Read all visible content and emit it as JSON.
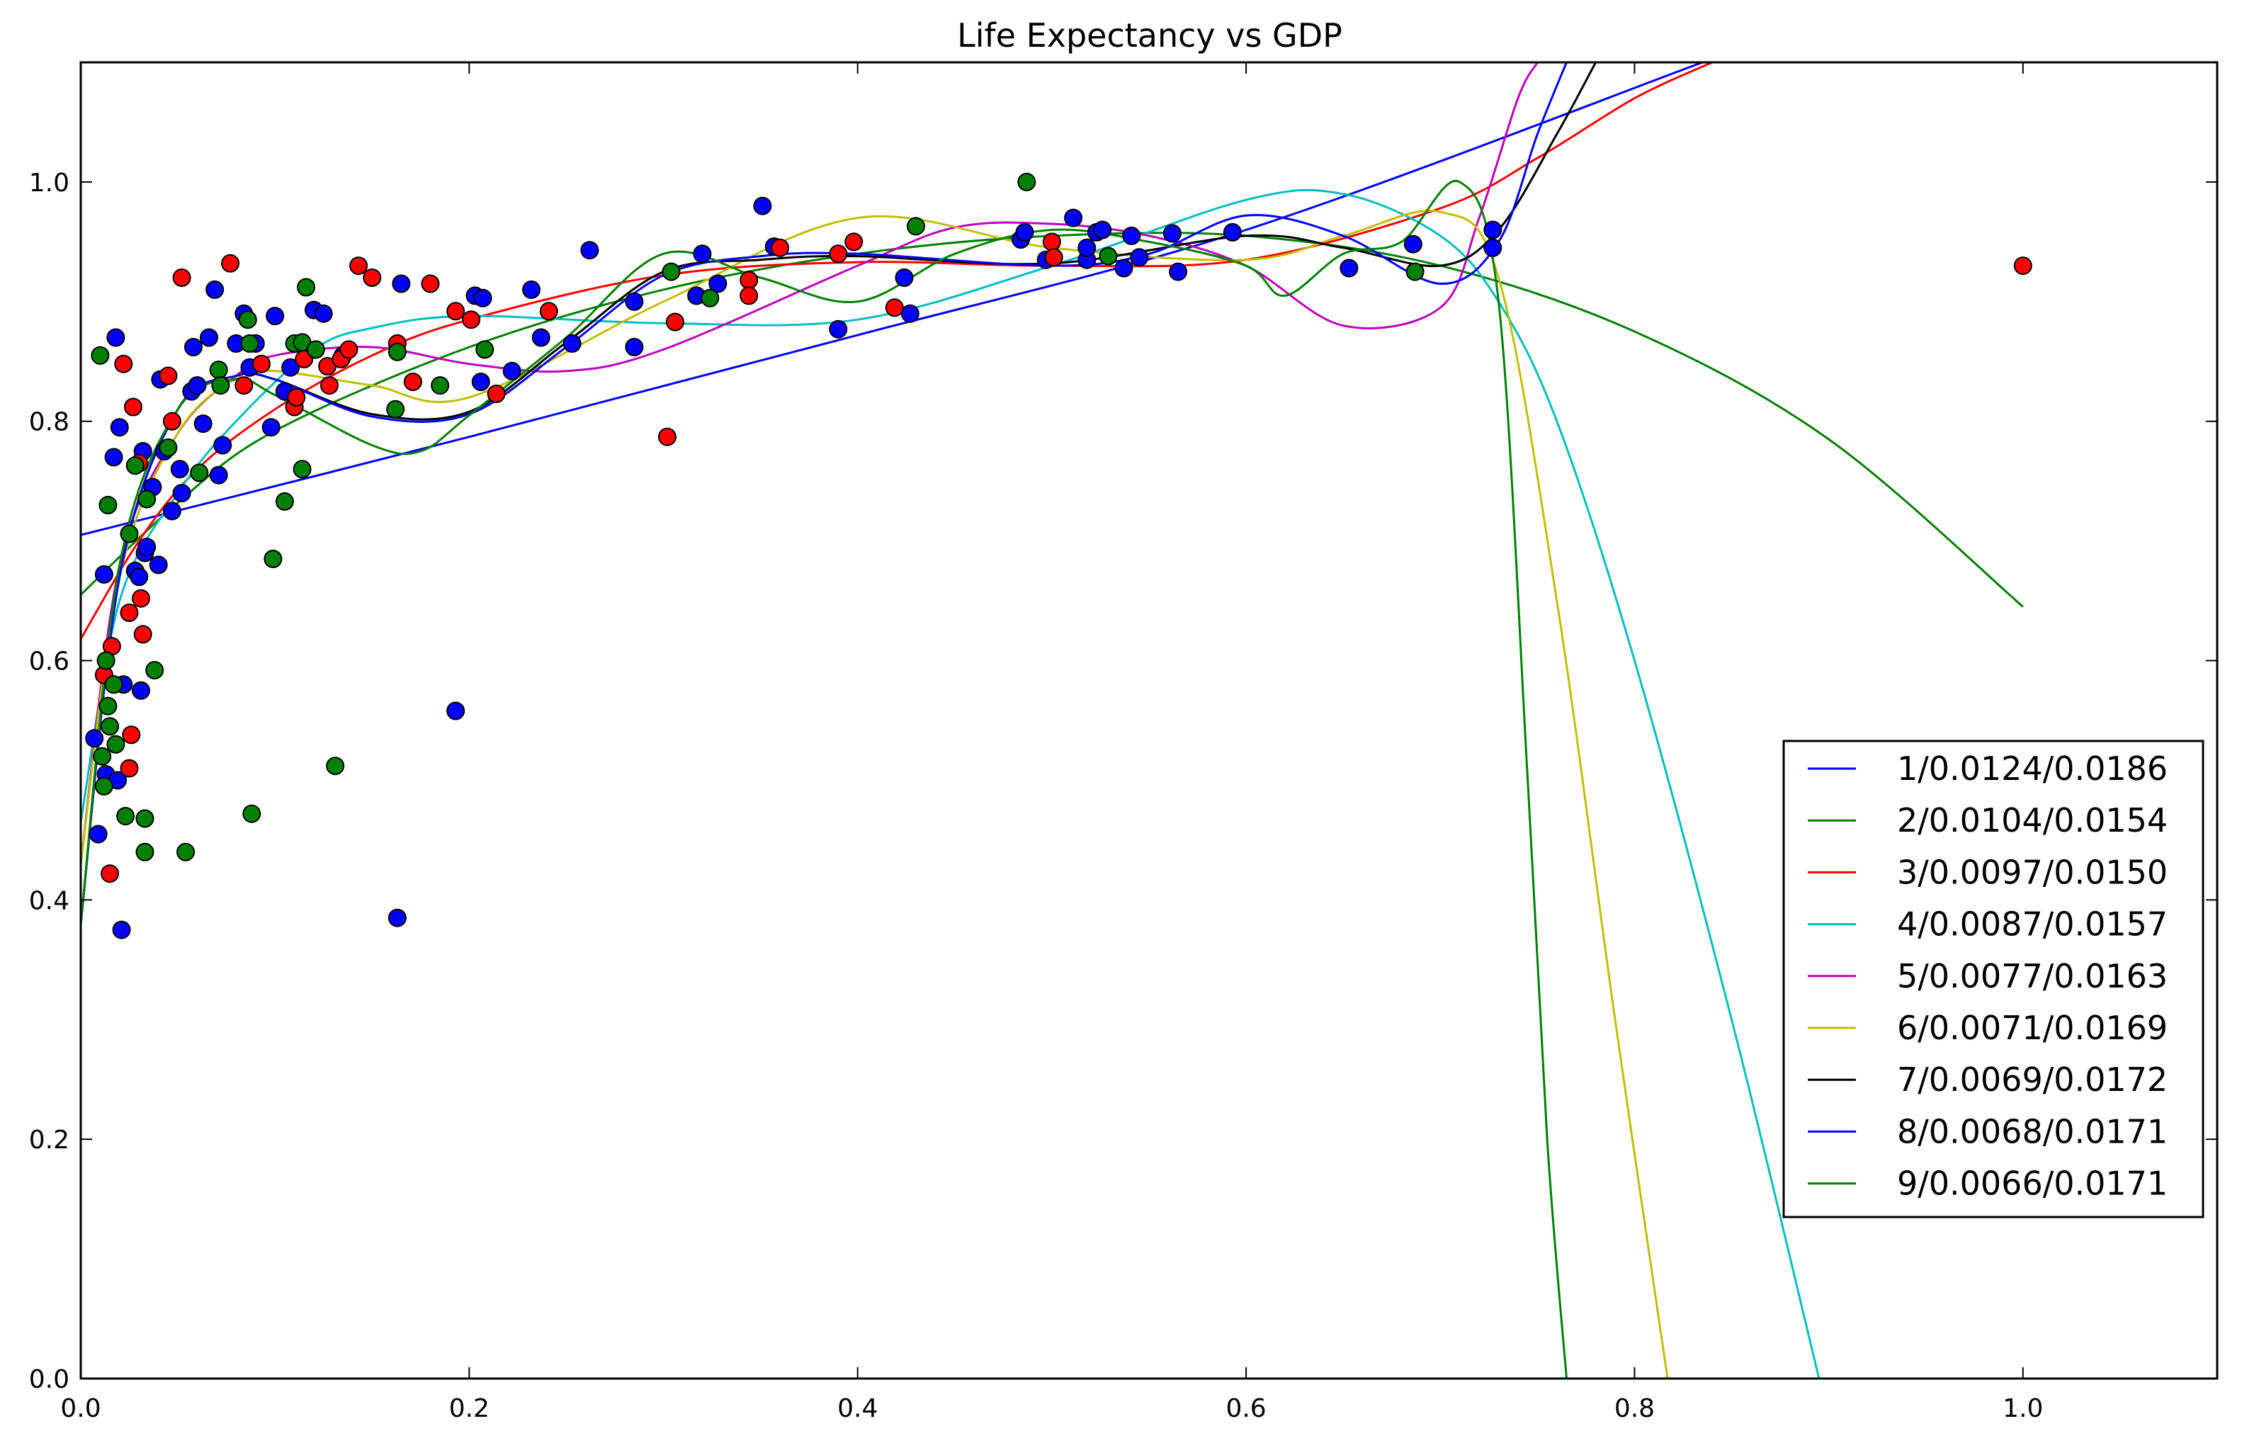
{
  "chart_data": {
    "type": "scatter",
    "title": "Life Expectancy vs GDP",
    "xlabel": "",
    "ylabel": "",
    "xlim": [
      0.0,
      1.1
    ],
    "ylim": [
      0.0,
      1.1
    ],
    "x_ticks": [
      0.0,
      0.2,
      0.4,
      0.6,
      0.8,
      1.0
    ],
    "y_ticks": [
      0.0,
      0.2,
      0.4,
      0.6,
      0.8,
      1.0
    ],
    "x_tick_labels": [
      "0.0",
      "0.2",
      "0.4",
      "0.6",
      "0.8",
      "1.0"
    ],
    "y_tick_labels": [
      "0.0",
      "0.2",
      "0.4",
      "0.6",
      "0.8",
      "1.0"
    ],
    "grid": false,
    "legend_position": "lower right",
    "series": [
      {
        "name": "1/0.0124/0.0186",
        "color": "#0000ff",
        "x": [
          0.0,
          0.2,
          0.4,
          0.6,
          0.835
        ],
        "y": [
          0.705,
          0.787,
          0.872,
          0.96,
          1.1
        ]
      },
      {
        "name": "2/0.0104/0.0154",
        "color": "#008000",
        "x": [
          0.0,
          0.05,
          0.1,
          0.2,
          0.3,
          0.4,
          0.5,
          0.6,
          0.7,
          0.8,
          0.9,
          1.0
        ],
        "y": [
          0.655,
          0.732,
          0.792,
          0.862,
          0.91,
          0.94,
          0.955,
          0.955,
          0.93,
          0.875,
          0.785,
          0.645
        ]
      },
      {
        "name": "3/0.0097/0.0150",
        "color": "#ff0000",
        "x": [
          0.0,
          0.03,
          0.06,
          0.1,
          0.15,
          0.2,
          0.3,
          0.4,
          0.5,
          0.6,
          0.7,
          0.75,
          0.8,
          0.84
        ],
        "y": [
          0.618,
          0.7,
          0.76,
          0.81,
          0.855,
          0.885,
          0.922,
          0.933,
          0.93,
          0.935,
          0.978,
          1.02,
          1.07,
          1.1
        ]
      },
      {
        "name": "4/0.0087/0.0157",
        "color": "#00bfbf",
        "x": [
          0.0,
          0.02,
          0.05,
          0.08,
          0.12,
          0.15,
          0.2,
          0.3,
          0.4,
          0.5,
          0.6,
          0.65,
          0.7,
          0.73,
          0.76,
          0.8,
          0.85,
          0.895
        ],
        "y": [
          0.465,
          0.65,
          0.74,
          0.8,
          0.86,
          0.878,
          0.888,
          0.882,
          0.885,
          0.93,
          0.985,
          0.99,
          0.955,
          0.9,
          0.8,
          0.6,
          0.3,
          0.0
        ]
      },
      {
        "name": "5/0.0077/0.0163",
        "color": "#bf00bf",
        "x": [
          0.0,
          0.02,
          0.05,
          0.08,
          0.1,
          0.15,
          0.2,
          0.25,
          0.3,
          0.4,
          0.45,
          0.5,
          0.55,
          0.6,
          0.65,
          0.7,
          0.72,
          0.74,
          0.75
        ],
        "y": [
          0.43,
          0.68,
          0.79,
          0.838,
          0.855,
          0.862,
          0.848,
          0.842,
          0.86,
          0.93,
          0.962,
          0.965,
          0.955,
          0.93,
          0.88,
          0.895,
          0.97,
          1.07,
          1.1
        ]
      },
      {
        "name": "6/0.0071/0.0169",
        "color": "#bfbf00",
        "x": [
          0.0,
          0.02,
          0.05,
          0.08,
          0.1,
          0.15,
          0.2,
          0.3,
          0.4,
          0.5,
          0.6,
          0.65,
          0.7,
          0.73,
          0.76,
          0.79,
          0.817
        ],
        "y": [
          0.43,
          0.67,
          0.79,
          0.836,
          0.842,
          0.83,
          0.82,
          0.9,
          0.97,
          0.945,
          0.935,
          0.955,
          0.975,
          0.92,
          0.65,
          0.3,
          0.0
        ]
      },
      {
        "name": "7/0.0069/0.0172",
        "color": "#000000",
        "x": [
          0.0,
          0.02,
          0.05,
          0.08,
          0.1,
          0.15,
          0.2,
          0.25,
          0.3,
          0.35,
          0.4,
          0.5,
          0.6,
          0.65,
          0.7,
          0.73,
          0.76,
          0.78
        ],
        "y": [
          0.38,
          0.67,
          0.81,
          0.838,
          0.835,
          0.806,
          0.808,
          0.866,
          0.925,
          0.935,
          0.938,
          0.932,
          0.955,
          0.945,
          0.93,
          0.96,
          1.04,
          1.1
        ]
      },
      {
        "name": "8/0.0068/0.0171",
        "color": "#0000ff",
        "x": [
          0.0,
          0.02,
          0.05,
          0.08,
          0.1,
          0.15,
          0.2,
          0.25,
          0.3,
          0.35,
          0.4,
          0.5,
          0.55,
          0.6,
          0.65,
          0.7,
          0.73,
          0.75,
          0.765
        ],
        "y": [
          0.38,
          0.67,
          0.81,
          0.838,
          0.835,
          0.804,
          0.806,
          0.862,
          0.922,
          0.938,
          0.94,
          0.93,
          0.94,
          0.972,
          0.955,
          0.915,
          0.95,
          1.04,
          1.1
        ]
      },
      {
        "name": "9/0.0066/0.0171",
        "color": "#008000",
        "x": [
          0.0,
          0.02,
          0.05,
          0.08,
          0.1,
          0.15,
          0.175,
          0.2,
          0.25,
          0.3,
          0.35,
          0.4,
          0.45,
          0.5,
          0.55,
          0.6,
          0.62,
          0.65,
          0.68,
          0.71,
          0.73,
          0.745,
          0.755,
          0.765
        ],
        "y": [
          0.38,
          0.68,
          0.81,
          0.835,
          0.822,
          0.78,
          0.775,
          0.805,
          0.87,
          0.94,
          0.92,
          0.9,
          0.94,
          0.96,
          0.95,
          0.93,
          0.905,
          0.94,
          0.95,
          1.0,
          0.9,
          0.5,
          0.2,
          0.0
        ]
      }
    ],
    "scatter_groups": [
      {
        "color": "#0000ff",
        "points": [
          [
            0.007,
            0.535
          ],
          [
            0.009,
            0.455
          ],
          [
            0.012,
            0.672
          ],
          [
            0.013,
            0.505
          ],
          [
            0.017,
            0.77
          ],
          [
            0.018,
            0.87
          ],
          [
            0.019,
            0.5
          ],
          [
            0.02,
            0.795
          ],
          [
            0.021,
            0.375
          ],
          [
            0.022,
            0.58
          ],
          [
            0.028,
            0.675
          ],
          [
            0.03,
            0.67
          ],
          [
            0.031,
            0.575
          ],
          [
            0.032,
            0.775
          ],
          [
            0.033,
            0.69
          ],
          [
            0.034,
            0.695
          ],
          [
            0.037,
            0.745
          ],
          [
            0.04,
            0.68
          ],
          [
            0.041,
            0.835
          ],
          [
            0.043,
            0.775
          ],
          [
            0.047,
            0.725
          ],
          [
            0.051,
            0.76
          ],
          [
            0.052,
            0.74
          ],
          [
            0.057,
            0.825
          ],
          [
            0.058,
            0.862
          ],
          [
            0.06,
            0.83
          ],
          [
            0.063,
            0.798
          ],
          [
            0.066,
            0.87
          ],
          [
            0.069,
            0.91
          ],
          [
            0.071,
            0.755
          ],
          [
            0.073,
            0.78
          ],
          [
            0.08,
            0.865
          ],
          [
            0.084,
            0.89
          ],
          [
            0.087,
            0.845
          ],
          [
            0.09,
            0.865
          ],
          [
            0.098,
            0.795
          ],
          [
            0.1,
            0.888
          ],
          [
            0.105,
            0.825
          ],
          [
            0.108,
            0.845
          ],
          [
            0.12,
            0.893
          ],
          [
            0.125,
            0.89
          ],
          [
            0.135,
            0.855
          ],
          [
            0.163,
            0.385
          ],
          [
            0.165,
            0.915
          ],
          [
            0.193,
            0.558
          ],
          [
            0.203,
            0.905
          ],
          [
            0.207,
            0.903
          ],
          [
            0.206,
            0.833
          ],
          [
            0.222,
            0.842
          ],
          [
            0.232,
            0.91
          ],
          [
            0.237,
            0.87
          ],
          [
            0.253,
            0.865
          ],
          [
            0.262,
            0.943
          ],
          [
            0.285,
            0.9
          ],
          [
            0.285,
            0.862
          ],
          [
            0.317,
            0.905
          ],
          [
            0.32,
            0.94
          ],
          [
            0.328,
            0.915
          ],
          [
            0.351,
            0.98
          ],
          [
            0.357,
            0.946
          ],
          [
            0.39,
            0.877
          ],
          [
            0.424,
            0.92
          ],
          [
            0.427,
            0.89
          ],
          [
            0.484,
            0.952
          ],
          [
            0.486,
            0.958
          ],
          [
            0.497,
            0.935
          ],
          [
            0.511,
            0.97
          ],
          [
            0.518,
            0.935
          ],
          [
            0.518,
            0.945
          ],
          [
            0.523,
            0.958
          ],
          [
            0.526,
            0.96
          ],
          [
            0.537,
            0.928
          ],
          [
            0.541,
            0.955
          ],
          [
            0.545,
            0.937
          ],
          [
            0.562,
            0.957
          ],
          [
            0.565,
            0.925
          ],
          [
            0.593,
            0.958
          ],
          [
            0.653,
            0.928
          ],
          [
            0.686,
            0.948
          ],
          [
            0.727,
            0.96
          ],
          [
            0.727,
            0.945
          ]
        ]
      },
      {
        "color": "#ff0000",
        "points": [
          [
            0.012,
            0.588
          ],
          [
            0.015,
            0.422
          ],
          [
            0.016,
            0.612
          ],
          [
            0.022,
            0.848
          ],
          [
            0.025,
            0.64
          ],
          [
            0.025,
            0.51
          ],
          [
            0.026,
            0.538
          ],
          [
            0.027,
            0.812
          ],
          [
            0.03,
            0.765
          ],
          [
            0.031,
            0.652
          ],
          [
            0.032,
            0.622
          ],
          [
            0.045,
            0.838
          ],
          [
            0.047,
            0.8
          ],
          [
            0.052,
            0.92
          ],
          [
            0.077,
            0.932
          ],
          [
            0.084,
            0.83
          ],
          [
            0.093,
            0.848
          ],
          [
            0.11,
            0.812
          ],
          [
            0.111,
            0.82
          ],
          [
            0.115,
            0.852
          ],
          [
            0.127,
            0.846
          ],
          [
            0.128,
            0.83
          ],
          [
            0.134,
            0.852
          ],
          [
            0.138,
            0.86
          ],
          [
            0.143,
            0.93
          ],
          [
            0.15,
            0.92
          ],
          [
            0.163,
            0.865
          ],
          [
            0.171,
            0.833
          ],
          [
            0.18,
            0.915
          ],
          [
            0.193,
            0.892
          ],
          [
            0.201,
            0.885
          ],
          [
            0.214,
            0.823
          ],
          [
            0.241,
            0.892
          ],
          [
            0.302,
            0.787
          ],
          [
            0.306,
            0.883
          ],
          [
            0.344,
            0.918
          ],
          [
            0.344,
            0.905
          ],
          [
            0.36,
            0.945
          ],
          [
            0.39,
            0.94
          ],
          [
            0.398,
            0.95
          ],
          [
            0.419,
            0.895
          ],
          [
            0.5,
            0.95
          ],
          [
            0.501,
            0.937
          ],
          [
            1.0,
            0.93
          ]
        ]
      },
      {
        "color": "#008000",
        "points": [
          [
            0.01,
            0.855
          ],
          [
            0.011,
            0.52
          ],
          [
            0.012,
            0.495
          ],
          [
            0.013,
            0.6
          ],
          [
            0.014,
            0.73
          ],
          [
            0.014,
            0.562
          ],
          [
            0.015,
            0.545
          ],
          [
            0.017,
            0.58
          ],
          [
            0.018,
            0.53
          ],
          [
            0.023,
            0.47
          ],
          [
            0.025,
            0.706
          ],
          [
            0.028,
            0.763
          ],
          [
            0.033,
            0.468
          ],
          [
            0.033,
            0.44
          ],
          [
            0.034,
            0.735
          ],
          [
            0.038,
            0.592
          ],
          [
            0.045,
            0.778
          ],
          [
            0.054,
            0.44
          ],
          [
            0.061,
            0.757
          ],
          [
            0.071,
            0.843
          ],
          [
            0.072,
            0.83
          ],
          [
            0.086,
            0.885
          ],
          [
            0.087,
            0.865
          ],
          [
            0.088,
            0.472
          ],
          [
            0.099,
            0.685
          ],
          [
            0.105,
            0.733
          ],
          [
            0.11,
            0.865
          ],
          [
            0.114,
            0.866
          ],
          [
            0.114,
            0.76
          ],
          [
            0.116,
            0.912
          ],
          [
            0.121,
            0.86
          ],
          [
            0.131,
            0.512
          ],
          [
            0.162,
            0.81
          ],
          [
            0.163,
            0.858
          ],
          [
            0.185,
            0.83
          ],
          [
            0.208,
            0.86
          ],
          [
            0.304,
            0.925
          ],
          [
            0.324,
            0.903
          ],
          [
            0.43,
            0.963
          ],
          [
            0.487,
            1.0
          ],
          [
            0.529,
            0.938
          ],
          [
            0.687,
            0.925
          ]
        ]
      }
    ]
  }
}
